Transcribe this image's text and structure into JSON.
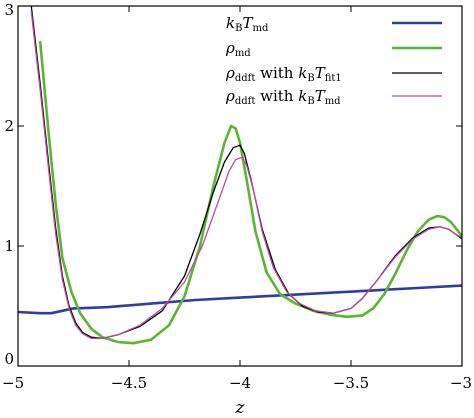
{
  "chart_data": {
    "type": "line",
    "title": "",
    "xlabel": "z",
    "ylabel": "",
    "xlim": [
      -5,
      -3
    ],
    "ylim": [
      0,
      3
    ],
    "x_ticks": [
      -5,
      -4.5,
      -4,
      -3.5,
      -3
    ],
    "x_tick_labels": [
      "−5",
      "−4.5",
      "−4",
      "−3.5",
      "−3"
    ],
    "y_ticks": [
      0,
      1,
      2,
      3
    ],
    "y_tick_labels": [
      "0",
      "1",
      "2",
      "3"
    ],
    "grid": false,
    "legend_position": "top-right",
    "series": [
      {
        "name": "kBTmd",
        "legend_parts": [
          [
            "k",
            "i",
            ""
          ],
          [
            "B",
            "sub",
            ""
          ],
          [
            "T",
            "i",
            ""
          ],
          [
            "md",
            "sub",
            ""
          ]
        ],
        "color": "#2c3ea3",
        "stroke_width": 2.6,
        "x": [
          -5.0,
          -4.9,
          -4.85,
          -4.8,
          -4.75,
          -4.6,
          -4.4,
          -4.2,
          -4.0,
          -3.8,
          -3.6,
          -3.4,
          -3.2,
          -3.0
        ],
        "y": [
          0.45,
          0.44,
          0.44,
          0.46,
          0.48,
          0.49,
          0.52,
          0.55,
          0.57,
          0.59,
          0.61,
          0.63,
          0.65,
          0.67
        ]
      },
      {
        "name": "ρmd",
        "legend_parts": [
          [
            "ρ",
            "i",
            ""
          ],
          [
            "md",
            "sub",
            ""
          ]
        ],
        "color": "#58b730",
        "stroke_width": 2.6,
        "x": [
          -4.9,
          -4.86,
          -4.83,
          -4.8,
          -4.76,
          -4.72,
          -4.67,
          -4.62,
          -4.55,
          -4.48,
          -4.4,
          -4.32,
          -4.25,
          -4.18,
          -4.12,
          -4.07,
          -4.04,
          -4.02,
          -4.0,
          -3.97,
          -3.93,
          -3.88,
          -3.82,
          -3.75,
          -3.67,
          -3.6,
          -3.52,
          -3.45,
          -3.4,
          -3.35,
          -3.3,
          -3.25,
          -3.2,
          -3.15,
          -3.11,
          -3.08,
          -3.05,
          -3.02,
          -3.0
        ],
        "y": [
          2.7,
          1.9,
          1.35,
          0.9,
          0.62,
          0.44,
          0.31,
          0.24,
          0.2,
          0.19,
          0.22,
          0.34,
          0.58,
          1.0,
          1.5,
          1.86,
          2.0,
          1.98,
          1.86,
          1.55,
          1.12,
          0.78,
          0.6,
          0.52,
          0.46,
          0.43,
          0.41,
          0.42,
          0.48,
          0.6,
          0.77,
          0.96,
          1.12,
          1.22,
          1.25,
          1.24,
          1.2,
          1.13,
          1.08
        ]
      },
      {
        "name": "ρddft with kBTfit1",
        "legend_parts": [
          [
            "ρ",
            "i",
            ""
          ],
          [
            "ddft",
            "sub",
            ""
          ],
          [
            " with ",
            "n",
            ""
          ],
          [
            "k",
            "i",
            ""
          ],
          [
            "B",
            "sub",
            ""
          ],
          [
            "T",
            "i",
            ""
          ],
          [
            "fit1",
            "sub",
            ""
          ]
        ],
        "color": "#000000",
        "stroke_width": 1.3,
        "x": [
          -4.94,
          -4.9,
          -4.86,
          -4.83,
          -4.8,
          -4.77,
          -4.74,
          -4.71,
          -4.67,
          -4.62,
          -4.55,
          -4.45,
          -4.35,
          -4.25,
          -4.18,
          -4.12,
          -4.07,
          -4.03,
          -4.0,
          -3.98,
          -3.95,
          -3.9,
          -3.84,
          -3.78,
          -3.72,
          -3.65,
          -3.58,
          -3.5,
          -3.45,
          -3.38,
          -3.3,
          -3.22,
          -3.15,
          -3.1,
          -3.06,
          -3.03,
          -3.0
        ],
        "y": [
          3.0,
          2.35,
          1.65,
          1.15,
          0.75,
          0.5,
          0.36,
          0.28,
          0.24,
          0.23,
          0.26,
          0.33,
          0.46,
          0.75,
          1.1,
          1.45,
          1.7,
          1.82,
          1.84,
          1.77,
          1.55,
          1.14,
          0.8,
          0.6,
          0.5,
          0.45,
          0.44,
          0.48,
          0.56,
          0.72,
          0.92,
          1.07,
          1.15,
          1.16,
          1.14,
          1.1,
          1.06
        ]
      },
      {
        "name": "ρddft with kBTmd",
        "legend_parts": [
          [
            "ρ",
            "i",
            ""
          ],
          [
            "ddft",
            "sub",
            ""
          ],
          [
            " with ",
            "n",
            ""
          ],
          [
            "k",
            "i",
            ""
          ],
          [
            "B",
            "sub",
            ""
          ],
          [
            "T",
            "i",
            ""
          ],
          [
            "md",
            "sub",
            ""
          ]
        ],
        "color": "#c0499e",
        "stroke_width": 1.3,
        "x": [
          -4.94,
          -4.9,
          -4.86,
          -4.83,
          -4.8,
          -4.77,
          -4.74,
          -4.71,
          -4.67,
          -4.62,
          -4.55,
          -4.45,
          -4.35,
          -4.25,
          -4.17,
          -4.1,
          -4.05,
          -4.02,
          -3.99,
          -3.97,
          -3.94,
          -3.9,
          -3.85,
          -3.79,
          -3.73,
          -3.66,
          -3.58,
          -3.5,
          -3.45,
          -3.38,
          -3.3,
          -3.22,
          -3.15,
          -3.1,
          -3.06,
          -3.03,
          -3.0
        ],
        "y": [
          2.95,
          2.3,
          1.6,
          1.1,
          0.72,
          0.48,
          0.34,
          0.27,
          0.23,
          0.23,
          0.26,
          0.34,
          0.48,
          0.7,
          1.0,
          1.36,
          1.62,
          1.72,
          1.74,
          1.67,
          1.47,
          1.12,
          0.82,
          0.62,
          0.52,
          0.46,
          0.44,
          0.48,
          0.56,
          0.72,
          0.91,
          1.06,
          1.14,
          1.16,
          1.14,
          1.1,
          1.07
        ]
      }
    ]
  }
}
